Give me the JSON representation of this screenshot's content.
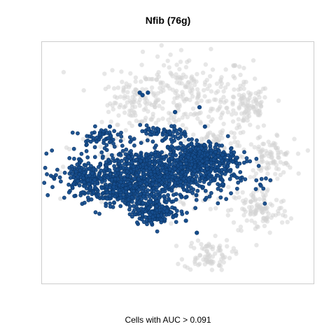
{
  "chart_data": {
    "type": "scatter",
    "title": "Nfib (76g)",
    "xlabel": "Cells with AUC > 0.091",
    "ylabel": "",
    "xlim": [
      0,
      100
    ],
    "ylim": [
      0,
      100
    ],
    "grid": false,
    "legend": "none",
    "colors": {
      "background_cells": "#d3d3d3",
      "positive_cells": "#154c8c",
      "positive_outline": "#0b3566",
      "frame": "#cccccc"
    },
    "series": [
      {
        "role": "background",
        "regions": [
          {
            "cx": 52,
            "cy": 78,
            "rx": 23,
            "ry": 15,
            "n": 260
          },
          {
            "cx": 33,
            "cy": 75,
            "rx": 10,
            "ry": 8,
            "n": 70
          },
          {
            "cx": 76,
            "cy": 73,
            "rx": 7,
            "ry": 9,
            "n": 90
          },
          {
            "cx": 65,
            "cy": 58,
            "rx": 11,
            "ry": 6,
            "n": 70
          },
          {
            "cx": 84,
            "cy": 52,
            "rx": 8,
            "ry": 7,
            "n": 90
          },
          {
            "cx": 80,
            "cy": 30,
            "rx": 10,
            "ry": 9,
            "n": 110
          },
          {
            "cx": 61,
            "cy": 12,
            "rx": 8,
            "ry": 6,
            "n": 80
          },
          {
            "cx": 40,
            "cy": 45,
            "rx": 27,
            "ry": 14,
            "n": 160
          }
        ]
      },
      {
        "role": "highlight",
        "regions": [
          {
            "cx": 40,
            "cy": 45,
            "rx": 27,
            "ry": 10,
            "n": 950
          },
          {
            "cx": 58,
            "cy": 52,
            "rx": 12,
            "ry": 6,
            "n": 320
          },
          {
            "cx": 28,
            "cy": 38,
            "rx": 10,
            "ry": 5,
            "n": 160
          },
          {
            "cx": 42,
            "cy": 30,
            "rx": 8,
            "ry": 5,
            "n": 180
          },
          {
            "cx": 21,
            "cy": 61,
            "rx": 6,
            "ry": 3,
            "n": 50
          },
          {
            "cx": 15,
            "cy": 44,
            "rx": 5,
            "ry": 6,
            "n": 90
          },
          {
            "cx": 45,
            "cy": 62,
            "rx": 8,
            "ry": 3,
            "n": 60
          }
        ],
        "singles": [
          [
            36,
            79
          ],
          [
            37,
            78
          ],
          [
            39,
            79
          ],
          [
            25,
            65
          ],
          [
            49,
            71
          ],
          [
            58,
            73
          ],
          [
            60,
            65
          ],
          [
            57,
            21
          ],
          [
            46,
            30
          ],
          [
            53,
            26
          ]
        ]
      }
    ]
  }
}
